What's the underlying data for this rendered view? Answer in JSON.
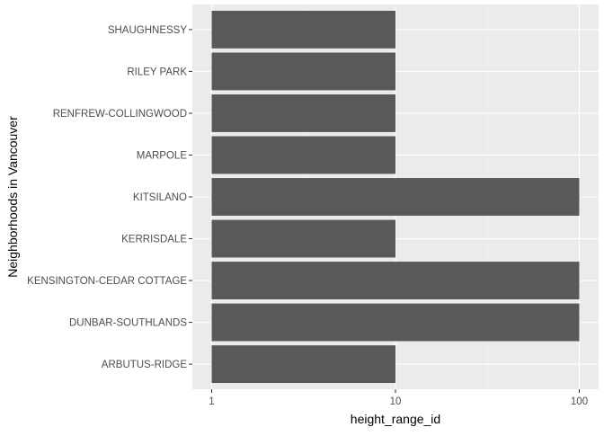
{
  "chart_data": {
    "type": "bar",
    "orientation": "horizontal",
    "categories": [
      "ARBUTUS-RIDGE",
      "DUNBAR-SOUTHLANDS",
      "KENSINGTON-CEDAR COTTAGE",
      "KERRISDALE",
      "KITSILANO",
      "MARPOLE",
      "RENFREW-COLLINGWOOD",
      "RILEY PARK",
      "SHAUGHNESSY"
    ],
    "values": [
      10,
      100,
      100,
      10,
      100,
      10,
      10,
      10,
      10
    ],
    "xlabel": "height_range_id",
    "ylabel": "Neighborhoods in Vancouver",
    "x_scale": "log10",
    "xlim": [
      1,
      100
    ],
    "x_ticks": [
      1,
      10,
      100
    ],
    "x_tick_labels": [
      "1",
      "10",
      "100"
    ],
    "grid": true,
    "theme": "ggplot2-grey",
    "colors": {
      "bar": "#595959",
      "panel_background": "#ebebeb",
      "grid_major": "#ffffff",
      "grid_minor": "#f5f5f5",
      "tick_text": "#4d4d4d",
      "axis_title": "#000000",
      "tick_mark": "#333333"
    }
  }
}
